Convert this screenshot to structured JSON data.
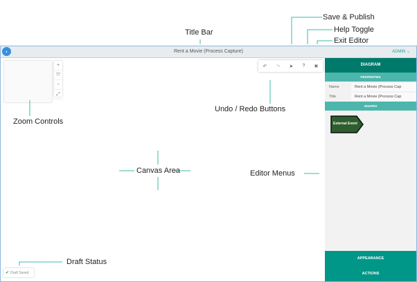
{
  "annotations": {
    "save_publish": "Save & Publish",
    "help_toggle": "Help Toggle",
    "exit_editor": "Exit Editor",
    "title_bar": "Title Bar",
    "zoom_controls": "Zoom Controls",
    "undo_redo": "Undo / Redo Buttons",
    "canvas_area": "Canvas Area",
    "editor_menus": "Editor Menus",
    "draft_status": "Draft Status"
  },
  "titlebar": {
    "logo": "bizzdesign",
    "title": "Rent a Movie (Process Capture)",
    "user": "ADMIN"
  },
  "zoom": {
    "in": "+",
    "fit": "⤧",
    "out": "−",
    "fullscreen": "⤢"
  },
  "toolbar": {
    "undo": "↶",
    "redo": "↷",
    "publish": "➤",
    "help": "?",
    "exit": "✖"
  },
  "panel": {
    "diagram": "DIAGRAM",
    "properties": "PROPERTIES",
    "name_label": "Name",
    "name_value": "Rent a Movie (Process Cap",
    "title_label": "Title",
    "title_value": "Rent a Movie (Process Cap",
    "shapes": "SHAPES",
    "shape_label": "External Event",
    "appearance": "APPEARANCE",
    "actions": "ACTIONS"
  },
  "draft": {
    "label": "Draft Saved"
  },
  "colors": {
    "accent": "#1aa397",
    "panel_dark": "#007a6a",
    "panel_light": "#4db6ac",
    "bottom": "#009688",
    "shape": "#2e5e2e"
  }
}
